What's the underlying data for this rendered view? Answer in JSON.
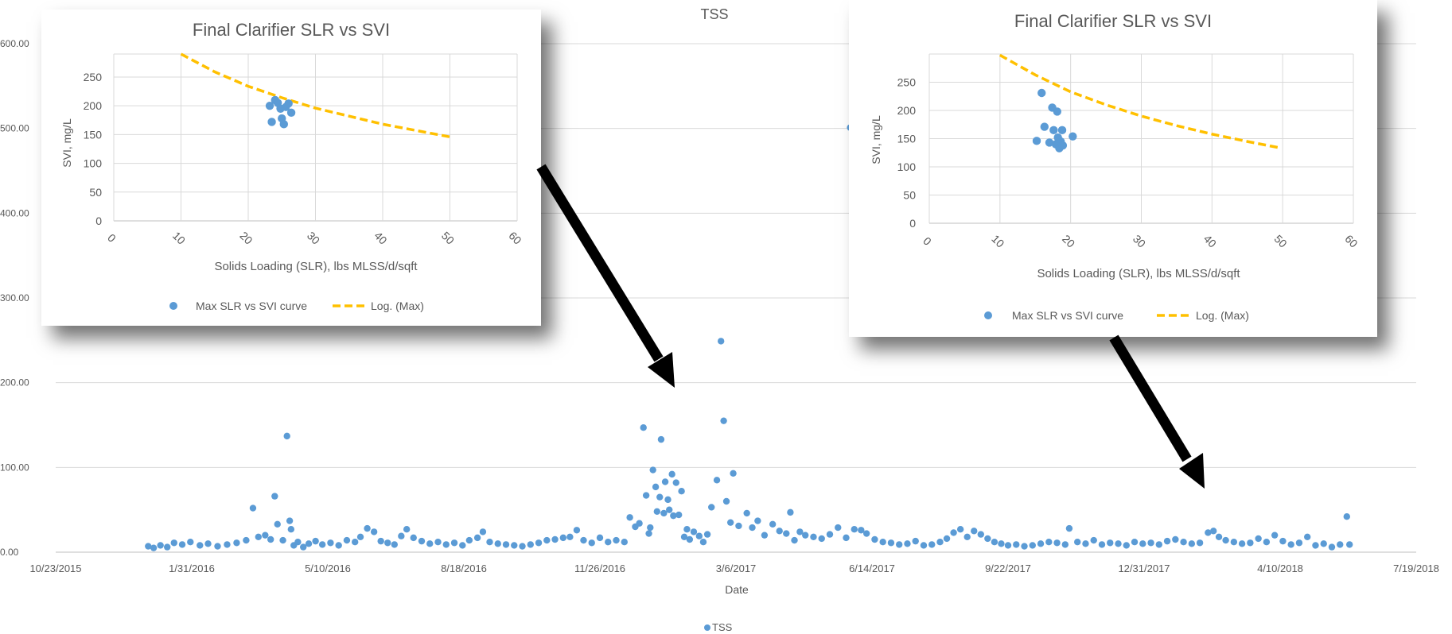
{
  "chart_data": [
    {
      "type": "scatter",
      "title": "TSS",
      "xlabel": "Date",
      "ylabel": "",
      "x_ticks": [
        "10/23/2015",
        "1/31/2016",
        "5/10/2016",
        "8/18/2016",
        "11/26/2016",
        "3/6/2017",
        "6/14/2017",
        "9/22/2017",
        "12/31/2017",
        "4/10/2018",
        "7/19/2018"
      ],
      "y_ticks": [
        "0.00",
        "100.00",
        "200.00",
        "300.00",
        "400.00",
        "500.00",
        "600.00"
      ],
      "ylim": [
        0,
        600
      ],
      "xlim": [
        "2015-10-23",
        "2018-07-19"
      ],
      "legend_position": "bottom",
      "grid": true,
      "series": [
        {
          "name": "TSS",
          "color": "#5B9BD5",
          "points": [
            [
              "2015-12-30",
              7
            ],
            [
              "2016-01-03",
              5
            ],
            [
              "2016-01-08",
              8
            ],
            [
              "2016-01-13",
              6
            ],
            [
              "2016-01-18",
              11
            ],
            [
              "2016-01-24",
              9
            ],
            [
              "2016-01-30",
              12
            ],
            [
              "2016-02-06",
              8
            ],
            [
              "2016-02-12",
              10
            ],
            [
              "2016-02-19",
              7
            ],
            [
              "2016-02-26",
              9
            ],
            [
              "2016-03-04",
              11
            ],
            [
              "2016-03-11",
              14
            ],
            [
              "2016-03-16",
              52
            ],
            [
              "2016-03-20",
              18
            ],
            [
              "2016-03-25",
              20
            ],
            [
              "2016-03-29",
              15
            ],
            [
              "2016-04-01",
              66
            ],
            [
              "2016-04-03",
              33
            ],
            [
              "2016-04-07",
              14
            ],
            [
              "2016-04-10",
              137
            ],
            [
              "2016-04-12",
              37
            ],
            [
              "2016-04-13",
              27
            ],
            [
              "2016-04-15",
              8
            ],
            [
              "2016-04-18",
              12
            ],
            [
              "2016-04-22",
              6
            ],
            [
              "2016-04-26",
              10
            ],
            [
              "2016-05-01",
              13
            ],
            [
              "2016-05-06",
              9
            ],
            [
              "2016-05-12",
              11
            ],
            [
              "2016-05-18",
              8
            ],
            [
              "2016-05-24",
              14
            ],
            [
              "2016-05-30",
              12
            ],
            [
              "2016-06-03",
              18
            ],
            [
              "2016-06-08",
              28
            ],
            [
              "2016-06-13",
              24
            ],
            [
              "2016-06-18",
              13
            ],
            [
              "2016-06-23",
              11
            ],
            [
              "2016-06-28",
              9
            ],
            [
              "2016-07-03",
              19
            ],
            [
              "2016-07-07",
              27
            ],
            [
              "2016-07-12",
              17
            ],
            [
              "2016-07-18",
              13
            ],
            [
              "2016-07-24",
              10
            ],
            [
              "2016-07-30",
              12
            ],
            [
              "2016-08-05",
              9
            ],
            [
              "2016-08-11",
              11
            ],
            [
              "2016-08-17",
              8
            ],
            [
              "2016-08-22",
              14
            ],
            [
              "2016-08-28",
              17
            ],
            [
              "2016-09-01",
              24
            ],
            [
              "2016-09-06",
              12
            ],
            [
              "2016-09-12",
              10
            ],
            [
              "2016-09-18",
              9
            ],
            [
              "2016-09-24",
              8
            ],
            [
              "2016-09-30",
              7
            ],
            [
              "2016-10-06",
              9
            ],
            [
              "2016-10-12",
              11
            ],
            [
              "2016-10-18",
              14
            ],
            [
              "2016-10-24",
              15
            ],
            [
              "2016-10-30",
              17
            ],
            [
              "2016-11-04",
              18
            ],
            [
              "2016-11-09",
              26
            ],
            [
              "2016-11-14",
              14
            ],
            [
              "2016-11-20",
              11
            ],
            [
              "2016-11-26",
              17
            ],
            [
              "2016-12-02",
              12
            ],
            [
              "2016-12-08",
              14
            ],
            [
              "2016-12-14",
              12
            ],
            [
              "2016-12-18",
              41
            ],
            [
              "2016-12-22",
              30
            ],
            [
              "2016-12-25",
              34
            ],
            [
              "2016-12-28",
              147
            ],
            [
              "2016-12-30",
              67
            ],
            [
              "2017-01-01",
              22
            ],
            [
              "2017-01-02",
              29
            ],
            [
              "2017-01-04",
              97
            ],
            [
              "2017-01-06",
              77
            ],
            [
              "2017-01-07",
              48
            ],
            [
              "2017-01-09",
              65
            ],
            [
              "2017-01-10",
              133
            ],
            [
              "2017-01-12",
              46
            ],
            [
              "2017-01-13",
              83
            ],
            [
              "2017-01-15",
              62
            ],
            [
              "2017-01-16",
              50
            ],
            [
              "2017-01-18",
              92
            ],
            [
              "2017-01-19",
              43
            ],
            [
              "2017-01-21",
              82
            ],
            [
              "2017-01-23",
              44
            ],
            [
              "2017-01-25",
              72
            ],
            [
              "2017-01-27",
              18
            ],
            [
              "2017-01-29",
              27
            ],
            [
              "2017-01-31",
              15
            ],
            [
              "2017-02-03",
              24
            ],
            [
              "2017-02-07",
              19
            ],
            [
              "2017-02-10",
              12
            ],
            [
              "2017-02-13",
              21
            ],
            [
              "2017-02-16",
              53
            ],
            [
              "2017-02-20",
              85
            ],
            [
              "2017-02-23",
              249
            ],
            [
              "2017-02-25",
              155
            ],
            [
              "2017-02-27",
              60
            ],
            [
              "2017-03-02",
              35
            ],
            [
              "2017-03-04",
              93
            ],
            [
              "2017-03-08",
              31
            ],
            [
              "2017-03-14",
              46
            ],
            [
              "2017-03-18",
              29
            ],
            [
              "2017-03-22",
              37
            ],
            [
              "2017-03-27",
              20
            ],
            [
              "2017-04-02",
              33
            ],
            [
              "2017-04-07",
              25
            ],
            [
              "2017-04-12",
              22
            ],
            [
              "2017-04-15",
              47
            ],
            [
              "2017-04-18",
              14
            ],
            [
              "2017-04-22",
              24
            ],
            [
              "2017-04-26",
              20
            ],
            [
              "2017-05-02",
              18
            ],
            [
              "2017-05-08",
              16
            ],
            [
              "2017-05-14",
              21
            ],
            [
              "2017-05-20",
              29
            ],
            [
              "2017-05-26",
              17
            ],
            [
              "2017-06-01",
              27
            ],
            [
              "2017-06-06",
              26
            ],
            [
              "2017-06-10",
              22
            ],
            [
              "2017-05-29",
              501
            ],
            [
              "2017-06-16",
              15
            ],
            [
              "2017-06-22",
              12
            ],
            [
              "2017-06-28",
              11
            ],
            [
              "2017-07-04",
              9
            ],
            [
              "2017-07-10",
              10
            ],
            [
              "2017-07-16",
              13
            ],
            [
              "2017-07-22",
              8
            ],
            [
              "2017-07-28",
              9
            ],
            [
              "2017-08-03",
              12
            ],
            [
              "2017-08-08",
              16
            ],
            [
              "2017-08-13",
              23
            ],
            [
              "2017-08-18",
              27
            ],
            [
              "2017-08-23",
              18
            ],
            [
              "2017-08-28",
              25
            ],
            [
              "2017-09-02",
              21
            ],
            [
              "2017-09-07",
              16
            ],
            [
              "2017-09-12",
              12
            ],
            [
              "2017-09-17",
              10
            ],
            [
              "2017-09-22",
              8
            ],
            [
              "2017-09-28",
              9
            ],
            [
              "2017-10-04",
              7
            ],
            [
              "2017-10-10",
              8
            ],
            [
              "2017-10-16",
              10
            ],
            [
              "2017-10-22",
              12
            ],
            [
              "2017-10-28",
              11
            ],
            [
              "2017-11-03",
              9
            ],
            [
              "2017-11-06",
              28
            ],
            [
              "2017-11-12",
              12
            ],
            [
              "2017-11-18",
              10
            ],
            [
              "2017-11-24",
              14
            ],
            [
              "2017-11-30",
              9
            ],
            [
              "2017-12-06",
              11
            ],
            [
              "2017-12-12",
              10
            ],
            [
              "2017-12-18",
              8
            ],
            [
              "2017-12-24",
              12
            ],
            [
              "2017-12-30",
              10
            ],
            [
              "2018-01-05",
              11
            ],
            [
              "2018-01-11",
              9
            ],
            [
              "2018-01-17",
              13
            ],
            [
              "2018-01-23",
              15
            ],
            [
              "2018-01-29",
              12
            ],
            [
              "2018-02-04",
              10
            ],
            [
              "2018-02-10",
              11
            ],
            [
              "2018-02-16",
              23
            ],
            [
              "2018-02-20",
              25
            ],
            [
              "2018-02-24",
              18
            ],
            [
              "2018-03-01",
              14
            ],
            [
              "2018-03-07",
              12
            ],
            [
              "2018-03-13",
              10
            ],
            [
              "2018-03-19",
              11
            ],
            [
              "2018-03-25",
              16
            ],
            [
              "2018-03-31",
              12
            ],
            [
              "2018-04-06",
              20
            ],
            [
              "2018-04-12",
              13
            ],
            [
              "2018-04-18",
              9
            ],
            [
              "2018-04-24",
              11
            ],
            [
              "2018-04-30",
              18
            ],
            [
              "2018-05-06",
              8
            ],
            [
              "2018-05-12",
              10
            ],
            [
              "2018-05-18",
              6
            ],
            [
              "2018-05-24",
              9
            ],
            [
              "2018-05-29",
              42
            ],
            [
              "2018-05-31",
              9
            ]
          ]
        }
      ]
    },
    {
      "type": "scatter",
      "title": "Final Clarifier SLR vs SVI",
      "xlabel": "Solids Loading (SLR), lbs MLSS/d/sqft",
      "ylabel": "SVI, mg/L",
      "x_ticks": [
        "0",
        "10",
        "20",
        "30",
        "40",
        "50",
        "60"
      ],
      "y_ticks": [
        "0",
        "50",
        "100",
        "150",
        "200",
        "250"
      ],
      "xlim": [
        0,
        60
      ],
      "ylim": [
        0,
        290
      ],
      "grid": true,
      "legend_position": "bottom",
      "series": [
        {
          "name": "Max SLR vs SVI curve",
          "color": "#5B9BD5",
          "points": [
            [
              23.2,
              200
            ],
            [
              23.5,
              172
            ],
            [
              24.0,
              210
            ],
            [
              24.4,
              205
            ],
            [
              24.8,
              195
            ],
            [
              25.0,
              178
            ],
            [
              25.3,
              168
            ],
            [
              25.6,
              198
            ],
            [
              26.0,
              204
            ],
            [
              26.4,
              188
            ]
          ]
        },
        {
          "name": "Log. (Max)",
          "color": "#FFC000",
          "style": "dashed",
          "points": [
            [
              10,
              290
            ],
            [
              15,
              259
            ],
            [
              20,
              234
            ],
            [
              25,
              214
            ],
            [
              30,
              196
            ],
            [
              35,
              182
            ],
            [
              40,
              168
            ],
            [
              45,
              157
            ],
            [
              50,
              146
            ]
          ]
        }
      ]
    },
    {
      "type": "scatter",
      "title": "Final Clarifier SLR vs SVI",
      "xlabel": "Solids Loading (SLR), lbs MLSS/d/sqft",
      "ylabel": "SVI, mg/L",
      "x_ticks": [
        "0",
        "10",
        "20",
        "30",
        "40",
        "50",
        "60"
      ],
      "y_ticks": [
        "0",
        "50",
        "100",
        "150",
        "200",
        "250"
      ],
      "xlim": [
        0,
        60
      ],
      "ylim": [
        0,
        300
      ],
      "grid": true,
      "legend_position": "bottom",
      "series": [
        {
          "name": "Max SLR vs SVI curve",
          "color": "#5B9BD5",
          "points": [
            [
              15.2,
              146
            ],
            [
              15.9,
              231
            ],
            [
              16.3,
              171
            ],
            [
              17.0,
              143
            ],
            [
              17.4,
              205
            ],
            [
              17.6,
              165
            ],
            [
              17.9,
              140
            ],
            [
              18.1,
              198
            ],
            [
              18.2,
              152
            ],
            [
              18.4,
              133
            ],
            [
              18.6,
              145
            ],
            [
              18.8,
              165
            ],
            [
              18.9,
              138
            ],
            [
              20.3,
              154
            ]
          ]
        },
        {
          "name": "Log. (Max)",
          "color": "#FFC000",
          "style": "dashed",
          "points": [
            [
              10,
              298
            ],
            [
              15,
              263
            ],
            [
              20,
              233
            ],
            [
              25,
              210
            ],
            [
              30,
              190
            ],
            [
              35,
              173
            ],
            [
              40,
              158
            ],
            [
              45,
              145
            ],
            [
              49.5,
              134
            ]
          ]
        }
      ]
    }
  ]
}
